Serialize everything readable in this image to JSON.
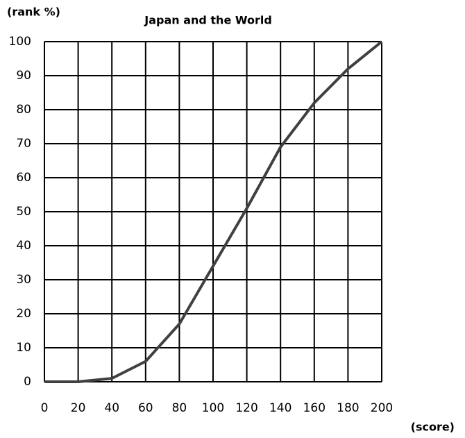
{
  "chart_data": {
    "type": "line",
    "title": "Japan and the World",
    "ylabel": "(rank %)",
    "xlabel": "(score)",
    "x": [
      0,
      20,
      40,
      60,
      80,
      100,
      120,
      140,
      160,
      180,
      200
    ],
    "values": [
      0,
      0,
      1,
      6,
      17,
      34,
      51,
      69,
      82,
      92,
      100
    ],
    "color": "#404040",
    "xlim": [
      0,
      200
    ],
    "xticks": [
      0,
      20,
      40,
      60,
      80,
      100,
      120,
      140,
      160,
      180,
      200
    ],
    "ylim": [
      0,
      100
    ],
    "yticks": [
      0,
      10,
      20,
      30,
      40,
      50,
      60,
      70,
      80,
      90,
      100
    ],
    "grid": true
  }
}
